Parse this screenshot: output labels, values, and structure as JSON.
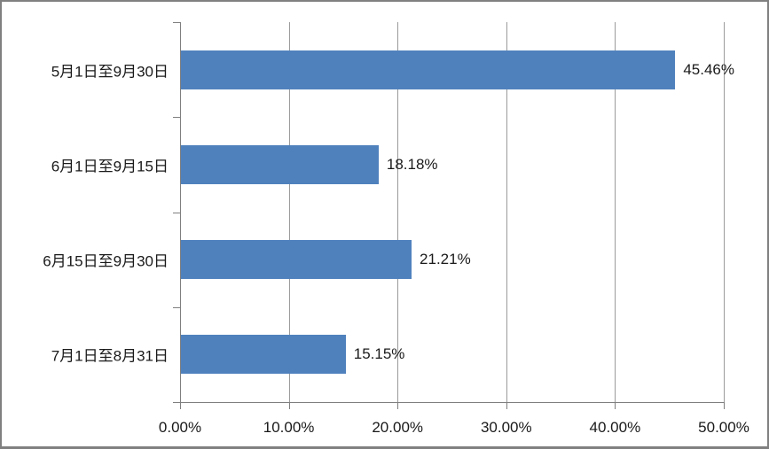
{
  "chart_data": {
    "type": "bar",
    "orientation": "horizontal",
    "title": "",
    "categories": [
      "5月1日至9月30日",
      "6月1日至9月15日",
      "6月15日至9月30日",
      "7月1日至8月31日"
    ],
    "values": [
      45.46,
      18.18,
      21.21,
      15.15
    ],
    "value_labels": [
      "45.46%",
      "18.18%",
      "21.21%",
      "15.15%"
    ],
    "x_axis": {
      "min": 0,
      "max": 50,
      "step": 10,
      "tick_labels": [
        "0.00%",
        "10.00%",
        "20.00%",
        "30.00%",
        "40.00%",
        "50.00%"
      ]
    },
    "grid": "vertical-gridlines-on",
    "legend": "none",
    "colors": {
      "bar_fill": "#4F81BD",
      "gridline": "#9B9B9B",
      "axis_line": "#7F7F7F",
      "label_text": "#1a1a1a",
      "chart_border": "#808080",
      "background": "#FFFFFF"
    }
  }
}
